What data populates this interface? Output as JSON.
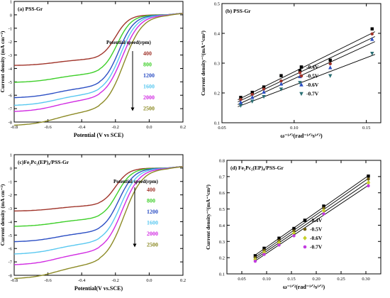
{
  "chart_data": [
    {
      "panel": "(a) PSS-Gr",
      "type": "line",
      "xlabel": "Potential (V vs SCE)",
      "ylabel": "Current density (mA cm⁻²)",
      "xlim": [
        -0.8,
        0.2
      ],
      "ylim": [
        -8,
        1
      ],
      "xticks": [
        "-0.8",
        "-0.6",
        "-0.4",
        "-0.2",
        "0.0",
        "0.2"
      ],
      "xtick_values": [
        -0.8,
        -0.6,
        -0.4,
        -0.2,
        0.0,
        0.2
      ],
      "yticks": [
        "-8",
        "-7",
        "-6",
        "-5",
        "-4",
        "-3",
        "-2",
        "-1",
        "0",
        "1"
      ],
      "ytick_values": [
        -8,
        -7,
        -6,
        -5,
        -4,
        -3,
        -2,
        -1,
        0,
        1
      ],
      "legend_title": "Potential speed(rpm)",
      "series": [
        {
          "name": "400",
          "color": "#a0342a",
          "limit": -3.3
        },
        {
          "name": "800",
          "color": "#3ecf29",
          "limit": -4.4
        },
        {
          "name": "1200",
          "color": "#2c4fc4",
          "limit": -5.4
        },
        {
          "name": "1600",
          "color": "#59c8f0",
          "limit": -5.9
        },
        {
          "name": "2000",
          "color": "#d12be2",
          "limit": -6.3
        },
        {
          "name": "2500",
          "color": "#8c8a25",
          "limit": -7.2
        }
      ]
    },
    {
      "panel": "(b) PSS-Gr",
      "type": "scatter",
      "xlabel": "ω⁻¹ᐟ²(rad⁻¹ᐟ²s¹ᐟ²)",
      "ylabel": "Current density⁻¹(mA⁻¹cm²)",
      "xlim": [
        0.05,
        0.16
      ],
      "ylim": [
        0.1,
        0.5
      ],
      "xticks": [
        "0.05",
        "0.10",
        "0.15"
      ],
      "xtick_values": [
        0.05,
        0.1,
        0.15
      ],
      "yticks": [
        "0.1",
        "0.2",
        "0.3",
        "0.4",
        "0.5"
      ],
      "ytick_values": [
        0.1,
        0.2,
        0.3,
        0.4,
        0.5
      ],
      "x": [
        0.063,
        0.071,
        0.079,
        0.091,
        0.104,
        0.125,
        0.154
      ],
      "series": [
        {
          "name": "-0.4V",
          "color": "#000000",
          "marker": "square",
          "values": [
            0.185,
            0.202,
            0.22,
            0.258,
            0.275,
            0.31,
            0.415
          ]
        },
        {
          "name": "-0.5V",
          "color": "#a0342a",
          "marker": "circle",
          "values": [
            0.178,
            0.195,
            0.213,
            0.24,
            0.268,
            0.298,
            0.398
          ]
        },
        {
          "name": "-0.6V",
          "color": "#2c4fc4",
          "marker": "triangle-up",
          "values": [
            0.168,
            0.185,
            0.203,
            0.23,
            0.255,
            0.285,
            0.38
          ]
        },
        {
          "name": "-0.7V",
          "color": "#2b6f74",
          "marker": "triangle-down",
          "values": [
            0.158,
            0.172,
            0.188,
            0.213,
            0.235,
            0.258,
            0.333
          ]
        }
      ]
    },
    {
      "panel": "(c)Fe₂Pc₂(EP)₄/PSS-Gr",
      "type": "line",
      "xlabel": "Potential(V vs.SCE)",
      "ylabel": "Current density (mA cm⁻²)",
      "xlim": [
        -0.8,
        0.2
      ],
      "ylim": [
        -8,
        1
      ],
      "xticks": [
        "-0.8",
        "-0.6",
        "-0.4",
        "-0.2",
        "0.0",
        "0.2"
      ],
      "xtick_values": [
        -0.8,
        -0.6,
        -0.4,
        -0.2,
        0.0,
        0.2
      ],
      "yticks": [
        "-8",
        "-7",
        "-6",
        "-5",
        "-4",
        "-3",
        "-2",
        "-1",
        "0",
        "1"
      ],
      "ytick_values": [
        -8,
        -7,
        -6,
        -5,
        -4,
        -3,
        -2,
        -1,
        0,
        1
      ],
      "legend_title": "Potential speed(rpm)",
      "series": [
        {
          "name": "400",
          "color": "#a0342a",
          "limit": -2.8
        },
        {
          "name": "800",
          "color": "#3ecf29",
          "limit": -3.8
        },
        {
          "name": "1200",
          "color": "#2c4fc4",
          "limit": -4.8
        },
        {
          "name": "1600",
          "color": "#59c8f0",
          "limit": -5.6
        },
        {
          "name": "2000",
          "color": "#d12be2",
          "limit": -6.3
        },
        {
          "name": "2500",
          "color": "#8c8a25",
          "limit": -7.2
        }
      ]
    },
    {
      "panel": "(d) Fe₂Pc₂(EP)₄/PSS-Gr",
      "type": "scatter",
      "xlabel": "ω⁻¹ᐟ²(rad⁻¹ᐟ²s¹ᐟ²)",
      "ylabel": "Current density⁻¹(mA⁻¹cm²)",
      "xlim": [
        0.02,
        0.33
      ],
      "ylim": [
        0.1,
        0.8
      ],
      "xticks": [
        "0.05",
        "0.10",
        "0.15",
        "0.20",
        "0.25",
        "0.30"
      ],
      "xtick_values": [
        0.05,
        0.1,
        0.15,
        0.2,
        0.25,
        0.3
      ],
      "yticks": [
        "0.1",
        "0.2",
        "0.3",
        "0.4",
        "0.5",
        "0.6",
        "0.7",
        "0.8"
      ],
      "ytick_values": [
        0.1,
        0.2,
        0.3,
        0.4,
        0.5,
        0.6,
        0.7,
        0.8
      ],
      "x": [
        0.077,
        0.095,
        0.125,
        0.155,
        0.215,
        0.305
      ],
      "series": [
        {
          "name": "-0.4V",
          "color": "#000000",
          "marker": "square",
          "values": [
            0.212,
            0.258,
            0.32,
            0.38,
            0.518,
            0.703
          ]
        },
        {
          "name": "-0.5V",
          "color": "#6b5a12",
          "marker": "circle",
          "values": [
            0.2,
            0.245,
            0.305,
            0.365,
            0.505,
            0.685
          ]
        },
        {
          "name": "-0.6V",
          "color": "#c7d02a",
          "marker": "diamond",
          "values": [
            0.188,
            0.232,
            0.292,
            0.35,
            0.49,
            0.662
          ]
        },
        {
          "name": "-0.7V",
          "color": "#c33be0",
          "marker": "circle",
          "values": [
            0.178,
            0.22,
            0.278,
            0.335,
            0.47,
            0.643
          ]
        }
      ]
    }
  ]
}
